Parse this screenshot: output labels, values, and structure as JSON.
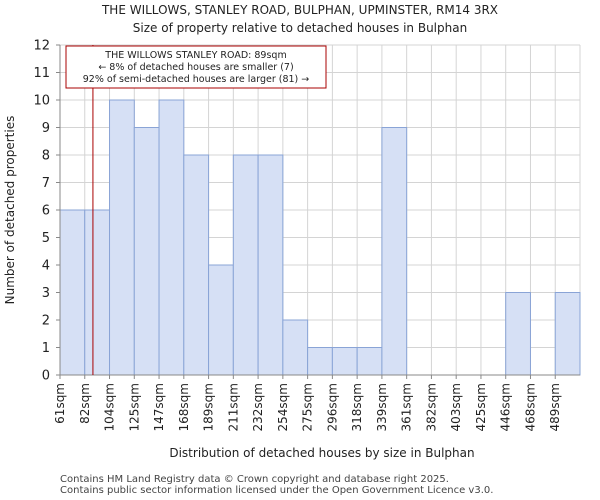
{
  "chart_data": {
    "type": "bar",
    "title": "THE WILLOWS, STANLEY ROAD, BULPHAN, UPMINSTER, RM14 3RX",
    "subtitle": "Size of property relative to detached houses in Bulphan",
    "xlabel": "Distribution of detached houses by size in Bulphan",
    "ylabel": "Number of detached properties",
    "categories": [
      "61sqm",
      "82sqm",
      "104sqm",
      "125sqm",
      "147sqm",
      "168sqm",
      "189sqm",
      "211sqm",
      "232sqm",
      "254sqm",
      "275sqm",
      "296sqm",
      "318sqm",
      "339sqm",
      "361sqm",
      "382sqm",
      "403sqm",
      "425sqm",
      "446sqm",
      "468sqm",
      "489sqm"
    ],
    "values": [
      6,
      6,
      10,
      9,
      10,
      8,
      4,
      8,
      8,
      2,
      1,
      1,
      1,
      9,
      0,
      0,
      0,
      0,
      3,
      0,
      3
    ],
    "ylim": [
      0,
      12
    ],
    "yticks": [
      0,
      1,
      2,
      3,
      4,
      5,
      6,
      7,
      8,
      9,
      10,
      11,
      12
    ],
    "grid": true,
    "bar_color": "#d6e0f5",
    "bar_edge_color": "#8aa4d6",
    "marker": {
      "value_sqm": 89,
      "position_in_bins": 1.33,
      "color": "#aa0000"
    },
    "annotation": {
      "line1": "THE WILLOWS STANLEY ROAD: 89sqm",
      "line2": "← 8% of detached houses are smaller (7)",
      "line3": "92% of semi-detached houses are larger (81) →",
      "border_color": "#aa0000"
    }
  },
  "footer": {
    "line1": "Contains HM Land Registry data © Crown copyright and database right 2025.",
    "line2": "Contains public sector information licensed under the Open Government Licence v3.0."
  }
}
